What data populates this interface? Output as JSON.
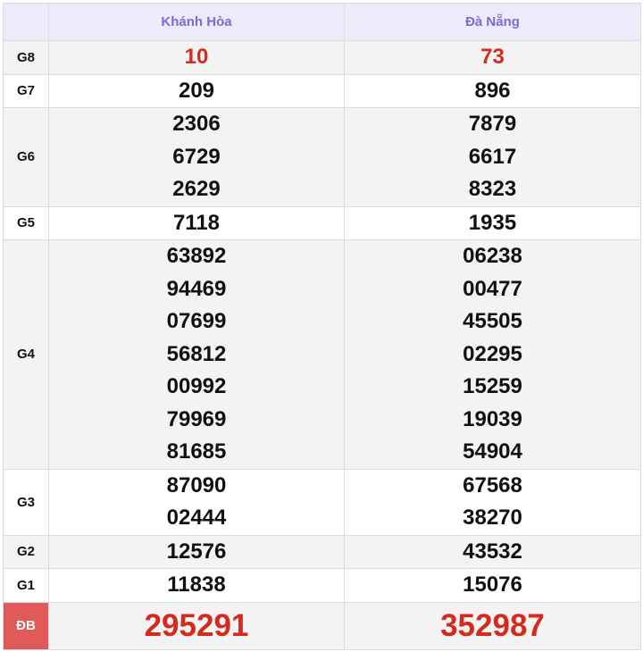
{
  "header": {
    "provinces": [
      "Khánh Hòa",
      "Đà Nẵng"
    ]
  },
  "colors": {
    "header_bg": "#edebfa",
    "header_text": "#7b6ad8",
    "prize_red": "#d52a1e",
    "special_label_bg": "#e05a5a"
  },
  "rows": [
    {
      "label": "G8",
      "cols": [
        [
          "10"
        ],
        [
          "73"
        ]
      ]
    },
    {
      "label": "G7",
      "cols": [
        [
          "209"
        ],
        [
          "896"
        ]
      ]
    },
    {
      "label": "G6",
      "cols": [
        [
          "2306",
          "6729",
          "2629"
        ],
        [
          "7879",
          "6617",
          "8323"
        ]
      ]
    },
    {
      "label": "G5",
      "cols": [
        [
          "7118"
        ],
        [
          "1935"
        ]
      ]
    },
    {
      "label": "G4",
      "cols": [
        [
          "63892",
          "94469",
          "07699",
          "56812",
          "00992",
          "79969",
          "81685"
        ],
        [
          "06238",
          "00477",
          "45505",
          "02295",
          "15259",
          "19039",
          "54904"
        ]
      ]
    },
    {
      "label": "G3",
      "cols": [
        [
          "87090",
          "02444"
        ],
        [
          "67568",
          "38270"
        ]
      ]
    },
    {
      "label": "G2",
      "cols": [
        [
          "12576"
        ],
        [
          "43532"
        ]
      ]
    },
    {
      "label": "G1",
      "cols": [
        [
          "11838"
        ],
        [
          "15076"
        ]
      ]
    },
    {
      "label": "ĐB",
      "cols": [
        [
          "295291"
        ],
        [
          "352987"
        ]
      ]
    }
  ]
}
